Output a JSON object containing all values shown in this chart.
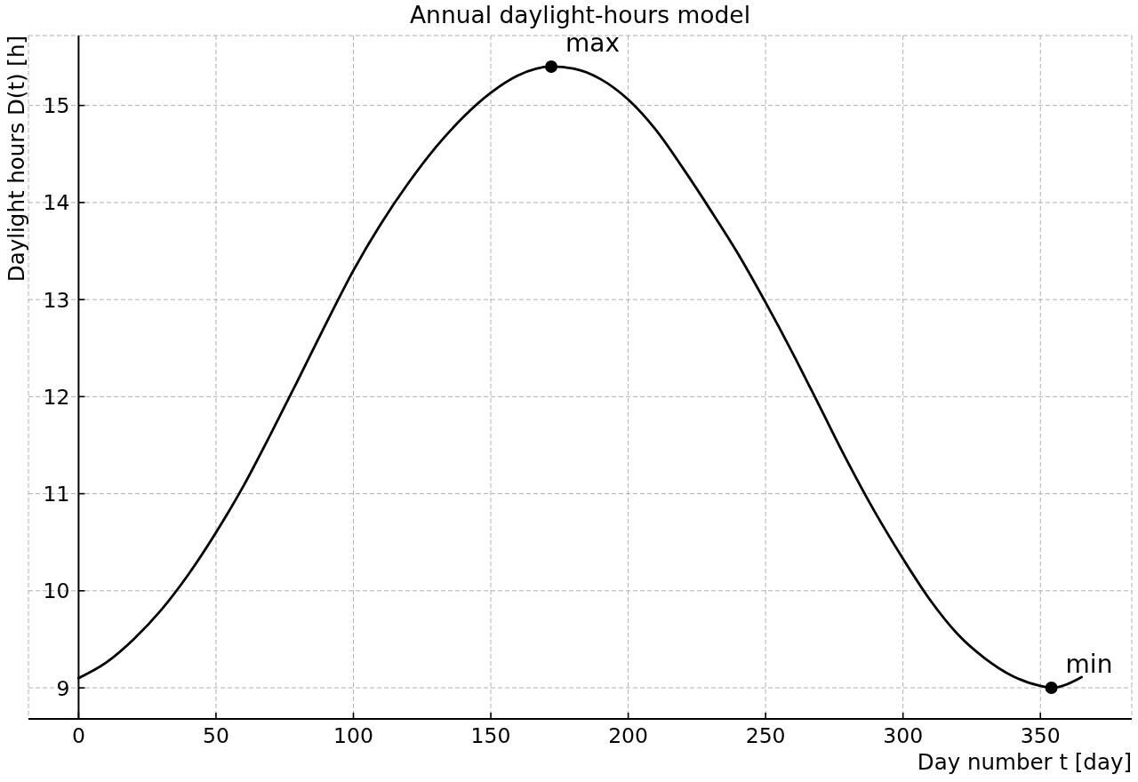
{
  "chart_data": {
    "type": "line",
    "title": "Annual daylight-hours model",
    "xlabel": "Day number t [day]",
    "ylabel": "Daylight hours D(t) [h]",
    "x": [
      0,
      10,
      20,
      30,
      40,
      50,
      60,
      70,
      80,
      90,
      100,
      110,
      120,
      130,
      140,
      150,
      160,
      172,
      180,
      190,
      200,
      210,
      220,
      230,
      240,
      250,
      260,
      270,
      280,
      290,
      300,
      310,
      320,
      330,
      340,
      350,
      354,
      365
    ],
    "series": [
      {
        "color": "#000000",
        "values": [
          9.1,
          9.26,
          9.5,
          9.8,
          10.17,
          10.6,
          11.08,
          11.62,
          12.18,
          12.75,
          13.3,
          13.78,
          14.2,
          14.57,
          14.88,
          15.13,
          15.31,
          15.4,
          15.38,
          15.27,
          15.06,
          14.75,
          14.35,
          13.92,
          13.47,
          12.97,
          12.44,
          11.88,
          11.32,
          10.8,
          10.33,
          9.9,
          9.55,
          9.3,
          9.12,
          9.02,
          9.0,
          9.11
        ]
      },
      {
        "type": "scatter",
        "color": "#000000",
        "marker": "circle",
        "x": [
          172,
          354
        ],
        "values": [
          15.4,
          9.0
        ]
      }
    ],
    "annotations": [
      {
        "text": "max",
        "x": 172,
        "y": 15.4
      },
      {
        "text": "min",
        "x": 354,
        "y": 9.0
      }
    ],
    "xlim": [
      -18.25,
      383.25
    ],
    "ylim": [
      8.68,
      15.72
    ],
    "xticks": [
      0,
      50,
      100,
      150,
      200,
      250,
      300,
      350
    ],
    "yticks": [
      9,
      10,
      11,
      12,
      13,
      14,
      15
    ],
    "grid": true,
    "marker": "none",
    "line_style": "solid"
  }
}
